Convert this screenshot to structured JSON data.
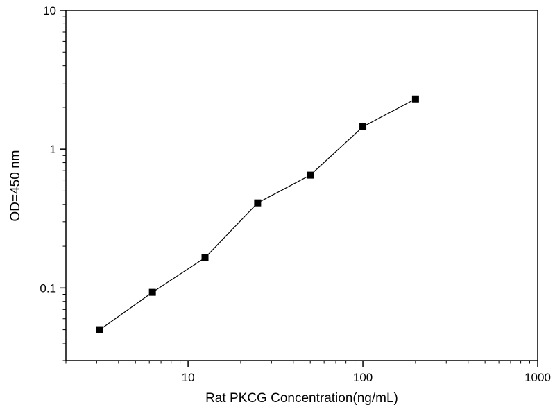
{
  "figure": {
    "background": "#ffffff",
    "axis_color": "#000000",
    "line_color": "#000000",
    "marker_color": "#000000",
    "marker_shape": "square"
  },
  "chart_data": {
    "type": "line",
    "x": [
      3.125,
      6.25,
      12.5,
      25,
      50,
      100,
      200
    ],
    "y": [
      0.05,
      0.093,
      0.165,
      0.41,
      0.65,
      1.45,
      2.3
    ],
    "title": "",
    "xlabel": "Rat PKCG Concentration(ng/mL)",
    "ylabel": "OD=450 nm",
    "xscale": "log",
    "yscale": "log",
    "xlim": [
      2,
      1000
    ],
    "ylim": [
      0.03,
      10
    ],
    "x_ticks": [
      10,
      100,
      1000
    ],
    "y_ticks": [
      0.1,
      1,
      10
    ],
    "grid": false,
    "legend_position": "none"
  }
}
